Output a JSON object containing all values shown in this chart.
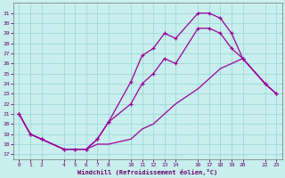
{
  "xlabel": "Windchill (Refroidissement éolien,°C)",
  "background_color": "#c8eeee",
  "grid_color": "#a0d8d8",
  "line_color": "#990099",
  "xlim": [
    -0.5,
    23.5
  ],
  "ylim": [
    16.5,
    32.0
  ],
  "x_ticks": [
    0,
    1,
    2,
    4,
    5,
    6,
    7,
    8,
    10,
    11,
    12,
    13,
    14,
    16,
    17,
    18,
    19,
    20,
    22,
    23
  ],
  "y_ticks": [
    17,
    18,
    19,
    20,
    21,
    22,
    23,
    24,
    25,
    26,
    27,
    28,
    29,
    30,
    31
  ],
  "curve1_x": [
    0,
    1,
    2,
    4,
    5,
    6,
    7,
    8,
    10,
    11,
    12,
    13,
    14,
    16,
    17,
    18,
    19,
    20,
    22,
    23
  ],
  "curve1_y": [
    21.0,
    19.0,
    18.5,
    17.5,
    17.5,
    17.5,
    18.5,
    20.2,
    24.2,
    26.8,
    27.5,
    29.0,
    28.5,
    31.0,
    31.0,
    30.5,
    29.0,
    26.5,
    24.0,
    23.0
  ],
  "curve2_x": [
    0,
    1,
    2,
    4,
    5,
    6,
    7,
    8,
    10,
    11,
    12,
    13,
    14,
    16,
    17,
    18,
    19,
    20,
    22,
    23
  ],
  "curve2_y": [
    21.0,
    19.0,
    18.5,
    17.5,
    17.5,
    17.5,
    18.5,
    20.2,
    22.0,
    24.0,
    25.0,
    26.5,
    26.0,
    29.5,
    29.5,
    29.0,
    27.5,
    26.5,
    24.0,
    23.0
  ],
  "curve3_x": [
    0,
    1,
    2,
    4,
    5,
    6,
    7,
    8,
    10,
    11,
    12,
    13,
    14,
    16,
    17,
    18,
    19,
    20,
    22,
    23
  ],
  "curve3_y": [
    21.0,
    19.0,
    18.5,
    17.5,
    17.5,
    17.5,
    18.0,
    18.0,
    18.5,
    19.5,
    20.0,
    21.0,
    22.0,
    23.5,
    24.5,
    25.5,
    26.0,
    26.5,
    24.0,
    23.0
  ]
}
